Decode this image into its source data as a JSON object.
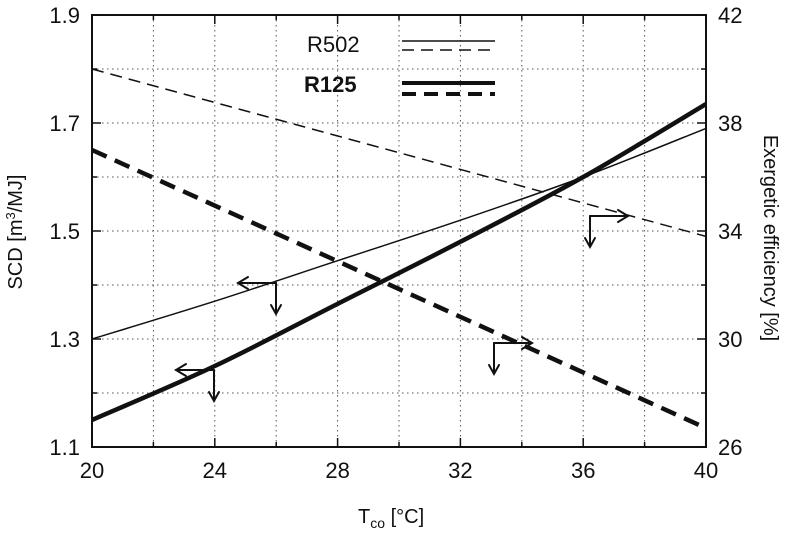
{
  "chart_data": {
    "type": "line",
    "title": "",
    "xlabel": "T",
    "xlabel_sub": "co",
    "xlabel_unit": " [°C]",
    "ylabel_left": "SCD [m",
    "ylabel_left_sup": "3",
    "ylabel_left_unit": "/MJ]",
    "ylabel_right": "Exergetic efficiency [%]",
    "xlim": [
      20,
      40
    ],
    "ylim_left": [
      1.1,
      1.9
    ],
    "ylim_right": [
      26,
      42
    ],
    "x_ticks": [
      "20",
      "24",
      "28",
      "32",
      "36",
      "40"
    ],
    "y_left_ticks": [
      "1.1",
      "1.3",
      "1.5",
      "1.7",
      "1.9"
    ],
    "y_right_ticks": [
      "26",
      "30",
      "34",
      "38",
      "42"
    ],
    "grid": true,
    "legend_position": "top-center",
    "legend": [
      {
        "label": "R502"
      },
      {
        "label": "R125"
      }
    ],
    "series": [
      {
        "fluid": "R502",
        "quantity": "SCD",
        "axis": "left",
        "style": "thin-solid",
        "x": [
          20,
          24,
          28,
          32,
          36,
          40
        ],
        "y": [
          1.3,
          1.37,
          1.445,
          1.52,
          1.6,
          1.69
        ]
      },
      {
        "fluid": "R125",
        "quantity": "SCD",
        "axis": "left",
        "style": "thick-solid",
        "x": [
          20,
          24,
          28,
          32,
          36,
          40
        ],
        "y": [
          1.15,
          1.25,
          1.365,
          1.48,
          1.6,
          1.735
        ]
      },
      {
        "fluid": "R502",
        "quantity": "Exergetic efficiency",
        "axis": "right",
        "style": "thin-dashed",
        "x": [
          20,
          40
        ],
        "y": [
          40.0,
          33.8
        ]
      },
      {
        "fluid": "R125",
        "quantity": "Exergetic efficiency",
        "axis": "right",
        "style": "thick-dashed",
        "x": [
          20,
          40
        ],
        "y": [
          37.0,
          26.7
        ]
      }
    ]
  },
  "colors": {
    "ink": "#111111",
    "background": "#ffffff"
  }
}
